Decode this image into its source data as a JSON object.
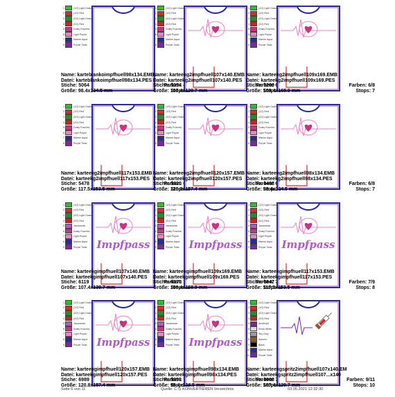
{
  "palette": {
    "1": "#26c426",
    "2": "#e02828",
    "3": "#2a8a2a",
    "4": "#d02020",
    "5": "#c8357f",
    "6": "#ee82c8",
    "7": "#2828a0",
    "8": "#7a28a0",
    "9": "#2a6a8a",
    "10": "#20207a",
    "J": "#b05ac8",
    "A": "#ddd8e0",
    "C": "#8a5a2a",
    "S": "#9a9a9a",
    "B": "#000000"
  },
  "cells": [
    {
      "swatches": [
        [
          "1",
          "(1/2) Light Grass",
          "1"
        ],
        [
          "2",
          "(1/2) Red",
          "2"
        ],
        [
          "3",
          "(2/2) Light Grass",
          "3"
        ],
        [
          "4",
          "(2/2) Red",
          "4"
        ],
        [
          "5",
          "Dusty Fuschia",
          "5"
        ],
        [
          "6",
          "Light Purple",
          "6"
        ],
        [
          "7",
          "Marine Aqua",
          "7"
        ],
        [
          "8",
          "Purple Twist",
          "8"
        ]
      ],
      "design": "blank",
      "lines": {
        "name": "Name: karteblankoimpfhuell98x134.EMB",
        "datei": "Datei: karteblankoimpfhuell98x134.PES",
        "stiche": "Stiche: 5064",
        "farben": "Farben: 4/8",
        "groesse": "Größe: 98.4x134.5 mm",
        "stops": "Stops: 5"
      }
    },
    {
      "swatches": [
        [
          "1",
          "(1/2) Light Grass",
          "1"
        ],
        [
          "2",
          "(1/2) Red",
          "2"
        ],
        [
          "3",
          "(2/2) Light Grass",
          "3"
        ],
        [
          "4",
          "(2/2) Red",
          "4"
        ],
        [
          "5",
          "Dusty Fuschia",
          "5"
        ],
        [
          "6",
          "Light Purple",
          "6"
        ],
        [
          "7",
          "Marine Aqua",
          "7"
        ],
        [
          "8",
          "Purple Twist",
          "8"
        ]
      ],
      "design": "ekg",
      "lines": {
        "name": "Name: karteekg2impfhuell107x140.EMB",
        "datei": "Datei: karteekg2impfhuell107x140.PES",
        "stiche": "Stiche: 5054",
        "farben": "Farben: 6/8",
        "groesse": "Größe: 107.4x139.7 mm",
        "stops": "Stops: 7"
      }
    },
    {
      "swatches": [
        [
          "1",
          "(1/2) Light Grass",
          "1"
        ],
        [
          "2",
          "(1/2) Red",
          "2"
        ],
        [
          "3",
          "(2/2) Light Grass",
          "3"
        ],
        [
          "4",
          "(2/2) Red",
          "4"
        ],
        [
          "5",
          "Dusty Fuschia",
          "5"
        ],
        [
          "6",
          "Light Purple",
          "6"
        ],
        [
          "7",
          "Marine Aqua",
          "7"
        ],
        [
          "8",
          "Purple Twist",
          "8"
        ]
      ],
      "design": "ekg",
      "lines": {
        "name": "Name: karteekg2impfhuell109x169.EMB",
        "datei": "Datei: karteekg2impfhuell109x169.PES",
        "stiche": "Stiche: 5209",
        "farben": "Farben: 6/8",
        "groesse": "Größe: 109.4x168.9 mm",
        "stops": "Stops: 7"
      }
    },
    {
      "swatches": [
        [
          "1",
          "(1/2) Light Grass",
          "1"
        ],
        [
          "2",
          "(1/2) Red",
          "2"
        ],
        [
          "3",
          "(2/2) Light Grass",
          "3"
        ],
        [
          "4",
          "(2/2) Red",
          "4"
        ],
        [
          "5",
          "Dusty Fuschia",
          "5"
        ],
        [
          "6",
          "Light Purple",
          "6"
        ],
        [
          "7",
          "Marine Aqua",
          "7"
        ],
        [
          "8",
          "Purple Twist",
          "8"
        ]
      ],
      "design": "ekg",
      "lines": {
        "name": "Name: karteekg2impfhuell117x153.EMB",
        "datei": "Datei: karteekg2impfhuell117x153.PES",
        "stiche": "Stiche: 5478",
        "farben": "Farben: 6/8",
        "groesse": "Größe: 117.5x153.5 mm",
        "stops": "Stops: 7"
      }
    },
    {
      "swatches": [
        [
          "1",
          "(1/2) Light Grass",
          "1"
        ],
        [
          "2",
          "(1/2) Red",
          "2"
        ],
        [
          "3",
          "(2/2) Light Grass",
          "3"
        ],
        [
          "4",
          "(2/2) Red",
          "4"
        ],
        [
          "5",
          "Dusty Fuschia",
          "5"
        ],
        [
          "6",
          "Light Purple",
          "6"
        ],
        [
          "7",
          "Marine Aqua",
          "7"
        ],
        [
          "8",
          "Purple Twist",
          "8"
        ]
      ],
      "design": "ekg",
      "lines": {
        "name": "Name: karteekg2impfhuell120x157.EMB",
        "datei": "Datei: karteekg2impfhuell120x157.PES",
        "stiche": "Stiche: 5620",
        "farben": "Farben: 6/8",
        "groesse": "Größe: 120.8x157.4 mm",
        "stops": "Stops: 7"
      }
    },
    {
      "swatches": [
        [
          "1",
          "(1/2) Light Grass",
          "1"
        ],
        [
          "2",
          "(1/2) Red",
          "2"
        ],
        [
          "3",
          "(2/2) Light Grass",
          "3"
        ],
        [
          "4",
          "(2/2) Red",
          "4"
        ],
        [
          "5",
          "Dusty Fuschia",
          "5"
        ],
        [
          "6",
          "Light Purple",
          "6"
        ],
        [
          "7",
          "Marine Aqua",
          "7"
        ],
        [
          "8",
          "Purple Twist",
          "8"
        ]
      ],
      "design": "ekg",
      "lines": {
        "name": "Name: karteekg2impfhuell98x134.EMB",
        "datei": "Datei: karteekg2impfhuell98x134.PES",
        "stiche": "Stiche: 4488",
        "farben": "Farben: 6/8",
        "groesse": "Größe: 98.4x134.5 mm",
        "stops": "Stops: 7"
      }
    },
    {
      "swatches": [
        [
          "1",
          "(1/2) Light Grass",
          "1"
        ],
        [
          "2",
          "(1/2) Red",
          "2"
        ],
        [
          "3",
          "(2/2) Light Grass",
          "3"
        ],
        [
          "4",
          "(2/2) Red",
          "4"
        ],
        [
          "5",
          "Jacaranda",
          "J"
        ],
        [
          "6",
          "Dusty Fuschia",
          "5"
        ],
        [
          "7",
          "Light Purple",
          "6"
        ],
        [
          "8",
          "Marine Aqua",
          "7"
        ],
        [
          "9",
          "Purple Twist",
          "8"
        ]
      ],
      "design": "impf",
      "lines": {
        "name": "Name: karteekgimpfhuell107x140.EMB",
        "datei": "Datei: karteekgimpfhuell107x140.PES",
        "stiche": "Stiche: 6119",
        "farben": "Farben: 7/9",
        "groesse": "Größe: 107.4x139.7 mm",
        "stops": "Stops: 8"
      }
    },
    {
      "swatches": [
        [
          "1",
          "(1/2) Light Grass",
          "1"
        ],
        [
          "2",
          "(1/2) Red",
          "2"
        ],
        [
          "3",
          "(2/2) Light Grass",
          "3"
        ],
        [
          "4",
          "(2/2) Red",
          "4"
        ],
        [
          "5",
          "Jacaranda",
          "J"
        ],
        [
          "6",
          "Dusty Fuschia",
          "5"
        ],
        [
          "7",
          "Light Purple",
          "6"
        ],
        [
          "8",
          "Marine Aqua",
          "7"
        ],
        [
          "9",
          "Purple Twist",
          "8"
        ]
      ],
      "design": "impf",
      "lines": {
        "name": "Name: karteekgimpfhuell109x169.EMB",
        "datei": "Datei: karteekgimpfhuell109x169.PES",
        "stiche": "Stiche: 6575",
        "farben": "Farben: 7/9",
        "groesse": "Größe: 109.4x168.9 mm",
        "stops": "Stops: 8"
      }
    },
    {
      "swatches": [
        [
          "1",
          "(1/2) Light Grass",
          "1"
        ],
        [
          "2",
          "(1/2) Red",
          "2"
        ],
        [
          "3",
          "(2/2) Light Grass",
          "3"
        ],
        [
          "4",
          "(2/2) Red",
          "4"
        ],
        [
          "5",
          "Jacaranda",
          "J"
        ],
        [
          "6",
          "Dusty Fuschia",
          "5"
        ],
        [
          "7",
          "Light Purple",
          "6"
        ],
        [
          "8",
          "Marine Aqua",
          "7"
        ],
        [
          "9",
          "Purple Twist",
          "8"
        ]
      ],
      "design": "impf",
      "lines": {
        "name": "Name: karteekgimpfhuell117x153.EMB",
        "datei": "Datei: karteekgimpfhuell117x153.PES",
        "stiche": "Stiche: 6847",
        "farben": "Farben: 7/9",
        "groesse": "Größe: 117.5x153.5 mm",
        "stops": "Stops: 8"
      }
    },
    {
      "swatches": [
        [
          "1",
          "(1/2) Light Grass",
          "1"
        ],
        [
          "2",
          "(1/2) Red",
          "2"
        ],
        [
          "3",
          "(2/2) Light Grass",
          "3"
        ],
        [
          "4",
          "(2/2) Red",
          "4"
        ],
        [
          "5",
          "Jacaranda",
          "J"
        ],
        [
          "6",
          "Dusty Fuschia",
          "5"
        ],
        [
          "7",
          "Light Purple",
          "6"
        ],
        [
          "8",
          "Marine Aqua",
          "7"
        ],
        [
          "9",
          "Purple Twist",
          "8"
        ]
      ],
      "design": "impf",
      "lines": {
        "name": "Name: karteekgimpfhuell120x157.EMB",
        "datei": "Datei: karteekgimpfhuell120x157.PES",
        "stiche": "Stiche: 6989",
        "farben": "Farben: 7/9",
        "groesse": "Größe: 120.8x157.4 mm",
        "stops": "Stops: 8"
      }
    },
    {
      "swatches": [
        [
          "1",
          "(1/2) Light Grass",
          "1"
        ],
        [
          "2",
          "(1/2) Red",
          "2"
        ],
        [
          "3",
          "(2/2) Light Grass",
          "3"
        ],
        [
          "4",
          "(2/2) Red",
          "4"
        ],
        [
          "5",
          "Jacaranda",
          "J"
        ],
        [
          "6",
          "Dusty Fuschia",
          "5"
        ],
        [
          "7",
          "Light Purple",
          "6"
        ],
        [
          "8",
          "Marine Aqua",
          "7"
        ],
        [
          "9",
          "Purple Twist",
          "8"
        ]
      ],
      "design": "impf",
      "lines": {
        "name": "Name: karteekgimpfhuell98x134.EMB",
        "datei": "Datei: karteekgimpfhuell98x134.PES",
        "stiche": "Stiche: 5853",
        "farben": "Farben: 7/9",
        "groesse": "Größe: 98.4x134.5 mm",
        "stops": "Stops: 8"
      }
    },
    {
      "swatches": [
        [
          "1",
          "(1/2) Light Grass",
          "1"
        ],
        [
          "2",
          "(1/2) Red",
          "2"
        ],
        [
          "3",
          "(2/2) Light Grass",
          "3"
        ],
        [
          "4",
          "(2/2) Red",
          "4"
        ],
        [
          "5",
          "Amethyst",
          "8"
        ],
        [
          "6",
          "Snow White",
          "A"
        ],
        [
          "7",
          "Sky Grey",
          "S"
        ],
        [
          "8",
          "Autumn",
          "C"
        ],
        [
          "9",
          "Black",
          "B"
        ],
        [
          "10",
          "Marine Aqua",
          "7"
        ],
        [
          "11",
          "Purple Twist",
          "8"
        ]
      ],
      "design": "spritze",
      "lines": {
        "name": "Name: karteekgspritz2impfhuell107x140.EM",
        "datei": "Datei: karteekgspritz2impfhuell107...x140",
        "stiche": "Stiche: 4908",
        "farben": "Farben: 9/11",
        "groesse": "Größe: 107.4x139.7 mm",
        "stops": "Stops: 10"
      }
    }
  ],
  "footer": {
    "left": "Seite 6 von 11",
    "center": "Quelle: C:\\1 KONVERTIEREN Verzeichnis",
    "right": "03.05.2021 12:32:30"
  }
}
